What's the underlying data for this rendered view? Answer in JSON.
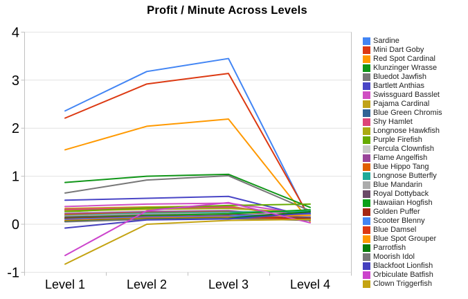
{
  "chart": {
    "title": "Profit / Minute Across Levels"
  },
  "chart_data": {
    "type": "line",
    "title": "Profit / Minute Across Levels",
    "xlabel": "",
    "ylabel": "",
    "categories": [
      "Level 1",
      "Level 2",
      "Level 3",
      "Level 4"
    ],
    "yticks": [
      4,
      3,
      2,
      1,
      0,
      -1
    ],
    "ylim": [
      -1,
      4
    ],
    "grid": true,
    "legend_position": "right",
    "colors": {
      "grid": "#e2e2e2",
      "axis": "#c0c0c0",
      "tick_label": "#000000",
      "legend_text": "#222222"
    },
    "series": [
      {
        "name": "Sardine",
        "color": "#4285F4",
        "values": [
          2.36,
          3.18,
          3.45,
          0.08
        ]
      },
      {
        "name": "Mini Dart Goby",
        "color": "#DC3912",
        "values": [
          2.21,
          2.92,
          3.14,
          0.12
        ]
      },
      {
        "name": "Red Spot Cardinal",
        "color": "#FF9900",
        "values": [
          1.55,
          2.04,
          2.19,
          0.05
        ]
      },
      {
        "name": "Klunzinger Wrasse",
        "color": "#109618",
        "values": [
          0.87,
          1.0,
          1.04,
          0.35
        ]
      },
      {
        "name": "Bluedot Jawfish",
        "color": "#777777",
        "values": [
          0.65,
          0.92,
          1.01,
          0.28
        ]
      },
      {
        "name": "Bartlett Anthias",
        "color": "#4945C6",
        "values": [
          0.5,
          0.54,
          0.58,
          0.15
        ]
      },
      {
        "name": "Swissguard Basslet",
        "color": "#D04FC3",
        "values": [
          0.37,
          0.42,
          0.44,
          0.2
        ]
      },
      {
        "name": "Pajama Cardinal",
        "color": "#C0A21A",
        "values": [
          0.33,
          0.36,
          0.38,
          0.1
        ]
      },
      {
        "name": "Blue Green Chromis",
        "color": "#316395",
        "values": [
          0.3,
          0.33,
          0.34,
          0.22
        ]
      },
      {
        "name": "Shy Hamlet",
        "color": "#DD4477",
        "values": [
          0.31,
          0.34,
          0.36,
          0.17
        ]
      },
      {
        "name": "Longnose Hawkfish",
        "color": "#AAAA11",
        "values": [
          0.28,
          0.31,
          0.33,
          0.24
        ]
      },
      {
        "name": "Purple Firefish",
        "color": "#66AA00",
        "values": [
          0.26,
          0.34,
          0.39,
          0.42
        ]
      },
      {
        "name": "Percula Clownfish",
        "color": "#C9C9C9",
        "values": [
          0.24,
          0.27,
          0.29,
          0.18
        ]
      },
      {
        "name": "Flame Angelfish",
        "color": "#994499",
        "values": [
          0.22,
          0.26,
          0.28,
          0.13
        ]
      },
      {
        "name": "Blue Hippo Tang",
        "color": "#E05E00",
        "values": [
          0.2,
          0.24,
          0.26,
          0.12
        ]
      },
      {
        "name": "Longnose Butterfly",
        "color": "#1FAA99",
        "values": [
          0.18,
          0.23,
          0.25,
          0.27
        ]
      },
      {
        "name": "Blue Mandarin",
        "color": "#ACACAC",
        "values": [
          0.17,
          0.21,
          0.23,
          0.16
        ]
      },
      {
        "name": "Royal Dottyback",
        "color": "#6B4A67",
        "values": [
          0.15,
          0.19,
          0.21,
          0.14
        ]
      },
      {
        "name": "Hawaiian Hogfish",
        "color": "#0BA019",
        "values": [
          0.13,
          0.18,
          0.22,
          0.3
        ]
      },
      {
        "name": "Golden Puffer",
        "color": "#A52714",
        "values": [
          0.12,
          0.16,
          0.18,
          0.11
        ]
      },
      {
        "name": "Scooter Blenny",
        "color": "#4285F4",
        "values": [
          0.1,
          0.15,
          0.17,
          0.21
        ]
      },
      {
        "name": "Blue Damsel",
        "color": "#DC3912",
        "values": [
          0.08,
          0.13,
          0.15,
          0.09
        ]
      },
      {
        "name": "Blue Spot Grouper",
        "color": "#FF9900",
        "values": [
          0.07,
          0.12,
          0.14,
          0.19
        ]
      },
      {
        "name": "Parrotfish",
        "color": "#0A7D0A",
        "values": [
          0.06,
          0.11,
          0.13,
          0.26
        ]
      },
      {
        "name": "Moorish Idol",
        "color": "#777777",
        "values": [
          0.05,
          0.1,
          0.12,
          0.08
        ]
      },
      {
        "name": "Blackfoot Lionfish",
        "color": "#4540BE",
        "values": [
          -0.08,
          0.09,
          0.11,
          0.23
        ]
      },
      {
        "name": "Orbiculate Batfish",
        "color": "#CC44CC",
        "values": [
          -0.65,
          0.28,
          0.45,
          0.03
        ]
      },
      {
        "name": "Clown Triggerfish",
        "color": "#C4A312",
        "values": [
          -0.83,
          0.0,
          0.08,
          0.1
        ]
      }
    ]
  }
}
